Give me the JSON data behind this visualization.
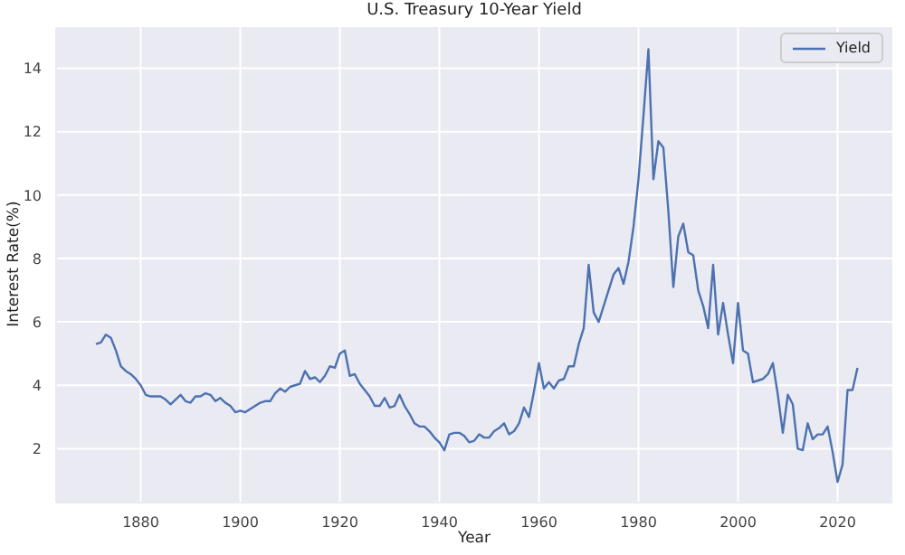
{
  "chart_data": {
    "type": "line",
    "title": "U.S. Treasury 10-Year Yield",
    "xlabel": "Year",
    "ylabel": "Interest Rate(%)",
    "x": [
      1871,
      1872,
      1873,
      1874,
      1875,
      1876,
      1877,
      1878,
      1879,
      1880,
      1881,
      1882,
      1883,
      1884,
      1885,
      1886,
      1887,
      1888,
      1889,
      1890,
      1891,
      1892,
      1893,
      1894,
      1895,
      1896,
      1897,
      1898,
      1899,
      1900,
      1901,
      1902,
      1903,
      1904,
      1905,
      1906,
      1907,
      1908,
      1909,
      1910,
      1911,
      1912,
      1913,
      1914,
      1915,
      1916,
      1917,
      1918,
      1919,
      1920,
      1921,
      1922,
      1923,
      1924,
      1925,
      1926,
      1927,
      1928,
      1929,
      1930,
      1931,
      1932,
      1933,
      1934,
      1935,
      1936,
      1937,
      1938,
      1939,
      1940,
      1941,
      1942,
      1943,
      1944,
      1945,
      1946,
      1947,
      1948,
      1949,
      1950,
      1951,
      1952,
      1953,
      1954,
      1955,
      1956,
      1957,
      1958,
      1959,
      1960,
      1961,
      1962,
      1963,
      1964,
      1965,
      1966,
      1967,
      1968,
      1969,
      1970,
      1971,
      1972,
      1973,
      1974,
      1975,
      1976,
      1977,
      1978,
      1979,
      1980,
      1981,
      1982,
      1983,
      1984,
      1985,
      1986,
      1987,
      1988,
      1989,
      1990,
      1991,
      1992,
      1993,
      1994,
      1995,
      1996,
      1997,
      1998,
      1999,
      2000,
      2001,
      2002,
      2003,
      2004,
      2005,
      2006,
      2007,
      2008,
      2009,
      2010,
      2011,
      2012,
      2013,
      2014,
      2015,
      2016,
      2017,
      2018,
      2019,
      2020,
      2021,
      2022,
      2023,
      2024
    ],
    "series": [
      {
        "name": "Yield",
        "color": "#4c72b0",
        "values": [
          5.3,
          5.35,
          5.6,
          5.5,
          5.1,
          4.6,
          4.45,
          4.35,
          4.2,
          4.0,
          3.7,
          3.65,
          3.65,
          3.65,
          3.55,
          3.4,
          3.55,
          3.7,
          3.5,
          3.45,
          3.65,
          3.65,
          3.75,
          3.7,
          3.5,
          3.6,
          3.45,
          3.35,
          3.15,
          3.2,
          3.15,
          3.25,
          3.35,
          3.45,
          3.5,
          3.5,
          3.75,
          3.9,
          3.8,
          3.95,
          4.0,
          4.05,
          4.45,
          4.2,
          4.25,
          4.1,
          4.3,
          4.6,
          4.55,
          5.0,
          5.1,
          4.3,
          4.35,
          4.05,
          3.85,
          3.65,
          3.35,
          3.35,
          3.6,
          3.3,
          3.35,
          3.7,
          3.35,
          3.1,
          2.8,
          2.7,
          2.7,
          2.55,
          2.35,
          2.2,
          1.95,
          2.45,
          2.5,
          2.5,
          2.4,
          2.2,
          2.25,
          2.45,
          2.35,
          2.35,
          2.55,
          2.65,
          2.8,
          2.45,
          2.55,
          2.8,
          3.3,
          3.0,
          3.8,
          4.7,
          3.9,
          4.1,
          3.9,
          4.15,
          4.2,
          4.6,
          4.6,
          5.3,
          5.8,
          7.8,
          6.3,
          6.0,
          6.5,
          7.0,
          7.5,
          7.7,
          7.2,
          7.9,
          9.0,
          10.5,
          12.5,
          14.6,
          10.5,
          11.7,
          11.5,
          9.5,
          7.1,
          8.7,
          9.1,
          8.2,
          8.1,
          7.0,
          6.5,
          5.8,
          7.8,
          5.6,
          6.6,
          5.6,
          4.7,
          6.6,
          5.1,
          5.0,
          4.1,
          4.15,
          4.2,
          4.35,
          4.7,
          3.7,
          2.5,
          3.7,
          3.4,
          2.0,
          1.95,
          2.8,
          2.3,
          2.45,
          2.45,
          2.7,
          1.9,
          0.95,
          1.5,
          3.85,
          3.85,
          4.55
        ]
      }
    ],
    "xlim": [
      1863,
      2031
    ],
    "xticks": [
      1880,
      1900,
      1920,
      1940,
      1960,
      1980,
      2000,
      2020
    ],
    "ylim": [
      0.3,
      15.3
    ],
    "yticks": [
      2,
      4,
      6,
      8,
      10,
      12,
      14
    ],
    "grid": true,
    "legend": "top right",
    "marker": "none",
    "line_style": "solid"
  }
}
